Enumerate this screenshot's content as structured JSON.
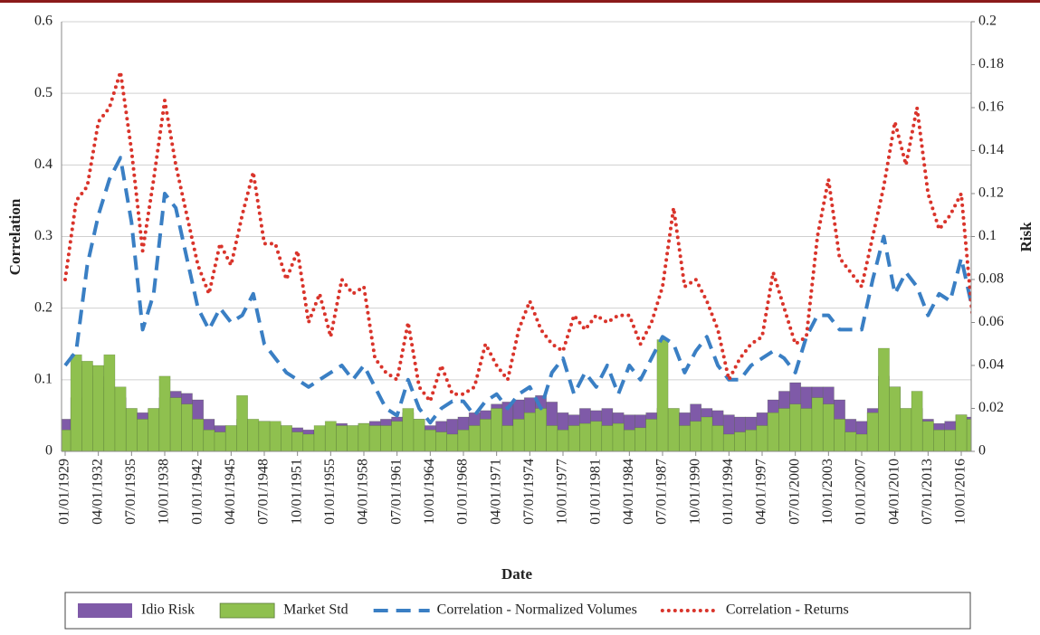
{
  "chart_data": {
    "type": "bar-line",
    "xlabel": "Date",
    "ylabel": "Correlation",
    "y2label": "Risk",
    "ylim": [
      0,
      0.6
    ],
    "yticks": [
      0,
      0.1,
      0.2,
      0.3,
      0.4,
      0.5,
      0.6
    ],
    "y2lim": [
      0,
      0.2
    ],
    "y2ticks": [
      0,
      0.02,
      0.04,
      0.06,
      0.08,
      0.1,
      0.12,
      0.14,
      0.16,
      0.18,
      0.2
    ],
    "grid": true,
    "legend": "bottom",
    "categories": [
      "01/01/1929",
      null,
      null,
      "04/01/1932",
      null,
      null,
      "07/01/1935",
      null,
      null,
      "10/01/1938",
      null,
      null,
      "01/01/1942",
      null,
      null,
      "04/01/1945",
      null,
      null,
      "07/01/1948",
      null,
      null,
      "10/01/1951",
      null,
      null,
      "01/01/1955",
      null,
      null,
      "04/01/1958",
      null,
      null,
      "07/01/1961",
      null,
      null,
      "10/01/1964",
      null,
      null,
      "01/01/1968",
      null,
      null,
      "04/01/1971",
      null,
      null,
      "07/01/1974",
      null,
      null,
      "10/01/1977",
      null,
      null,
      "01/01/1981",
      null,
      null,
      "04/01/1984",
      null,
      null,
      "07/01/1987",
      null,
      null,
      "10/01/1990",
      null,
      null,
      "01/01/1994",
      null,
      null,
      "04/01/1997",
      null,
      null,
      "07/01/2000",
      null,
      null,
      "10/01/2003",
      null,
      null,
      "01/01/2007",
      null,
      null,
      "04/01/2010",
      null,
      null,
      "07/01/2013",
      null,
      null,
      "10/01/2016",
      null
    ],
    "series": [
      {
        "name": "Idio Risk",
        "type": "bar",
        "axis": "y2",
        "color": "#7f5aa8",
        "values": [
          0.015,
          0.025,
          0.04,
          0.035,
          0.03,
          0.025,
          0.02,
          0.018,
          0.02,
          0.025,
          0.028,
          0.027,
          0.024,
          0.015,
          0.012,
          0.012,
          0.015,
          0.014,
          0.014,
          0.013,
          0.012,
          0.011,
          0.01,
          0.01,
          0.012,
          0.013,
          0.012,
          0.013,
          0.014,
          0.015,
          0.016,
          0.018,
          0.015,
          0.012,
          0.014,
          0.015,
          0.016,
          0.018,
          0.019,
          0.022,
          0.023,
          0.024,
          0.025,
          0.026,
          0.023,
          0.018,
          0.017,
          0.02,
          0.019,
          0.02,
          0.018,
          0.017,
          0.017,
          0.018,
          0.02,
          0.02,
          0.018,
          0.022,
          0.02,
          0.019,
          0.017,
          0.016,
          0.016,
          0.018,
          0.024,
          0.028,
          0.032,
          0.03,
          0.03,
          0.03,
          0.024,
          0.015,
          0.014,
          0.02,
          0.035,
          0.03,
          0.02,
          0.02,
          0.015,
          0.013,
          0.014,
          0.017,
          0.016
        ]
      },
      {
        "name": "Market Std",
        "type": "bar",
        "axis": "y2",
        "color": "#8fc04f",
        "values": [
          0.01,
          0.045,
          0.042,
          0.04,
          0.045,
          0.03,
          0.02,
          0.015,
          0.02,
          0.035,
          0.025,
          0.022,
          0.015,
          0.01,
          0.009,
          0.012,
          0.026,
          0.015,
          0.014,
          0.014,
          0.012,
          0.009,
          0.008,
          0.012,
          0.014,
          0.012,
          0.012,
          0.013,
          0.012,
          0.012,
          0.014,
          0.02,
          0.015,
          0.01,
          0.009,
          0.008,
          0.01,
          0.012,
          0.015,
          0.02,
          0.012,
          0.015,
          0.018,
          0.02,
          0.012,
          0.01,
          0.012,
          0.013,
          0.014,
          0.012,
          0.013,
          0.01,
          0.011,
          0.015,
          0.052,
          0.02,
          0.012,
          0.014,
          0.016,
          0.012,
          0.008,
          0.009,
          0.01,
          0.012,
          0.018,
          0.02,
          0.022,
          0.02,
          0.025,
          0.022,
          0.015,
          0.009,
          0.008,
          0.018,
          0.048,
          0.03,
          0.02,
          0.028,
          0.014,
          0.01,
          0.01,
          0.017,
          0.015
        ]
      },
      {
        "name": "Correlation - Normalized Volumes",
        "type": "line",
        "style": "dashed",
        "color": "#3a7fc4",
        "values": [
          0.12,
          0.14,
          0.26,
          0.33,
          0.38,
          0.41,
          0.32,
          0.17,
          0.22,
          0.36,
          0.34,
          0.27,
          0.2,
          0.17,
          0.2,
          0.18,
          0.19,
          0.22,
          0.15,
          0.13,
          0.11,
          0.1,
          0.09,
          0.1,
          0.11,
          0.12,
          0.1,
          0.12,
          0.09,
          0.06,
          0.05,
          0.1,
          0.06,
          0.04,
          0.06,
          0.07,
          0.07,
          0.05,
          0.07,
          0.08,
          0.06,
          0.08,
          0.09,
          0.06,
          0.11,
          0.13,
          0.08,
          0.11,
          0.09,
          0.12,
          0.08,
          0.12,
          0.1,
          0.13,
          0.16,
          0.15,
          0.11,
          0.14,
          0.16,
          0.12,
          0.1,
          0.1,
          0.12,
          0.13,
          0.14,
          0.13,
          0.11,
          0.16,
          0.19,
          0.19,
          0.17,
          0.17,
          0.17,
          0.24,
          0.3,
          0.22,
          0.25,
          0.23,
          0.19,
          0.22,
          0.21,
          0.27,
          0.2
        ]
      },
      {
        "name": "Correlation - Returns",
        "type": "line",
        "style": "dotted",
        "color": "#d9342b",
        "values": [
          0.24,
          0.35,
          0.37,
          0.46,
          0.48,
          0.53,
          0.42,
          0.28,
          0.38,
          0.49,
          0.4,
          0.33,
          0.26,
          0.22,
          0.29,
          0.26,
          0.33,
          0.39,
          0.29,
          0.29,
          0.24,
          0.28,
          0.18,
          0.22,
          0.16,
          0.24,
          0.22,
          0.23,
          0.13,
          0.11,
          0.1,
          0.18,
          0.09,
          0.07,
          0.12,
          0.08,
          0.08,
          0.09,
          0.15,
          0.12,
          0.1,
          0.17,
          0.21,
          0.17,
          0.15,
          0.14,
          0.19,
          0.17,
          0.19,
          0.18,
          0.19,
          0.19,
          0.15,
          0.18,
          0.23,
          0.34,
          0.23,
          0.24,
          0.21,
          0.17,
          0.1,
          0.13,
          0.15,
          0.16,
          0.25,
          0.2,
          0.15,
          0.16,
          0.3,
          0.38,
          0.27,
          0.25,
          0.23,
          0.3,
          0.37,
          0.46,
          0.4,
          0.48,
          0.36,
          0.31,
          0.33,
          0.36,
          0.19
        ]
      }
    ]
  }
}
